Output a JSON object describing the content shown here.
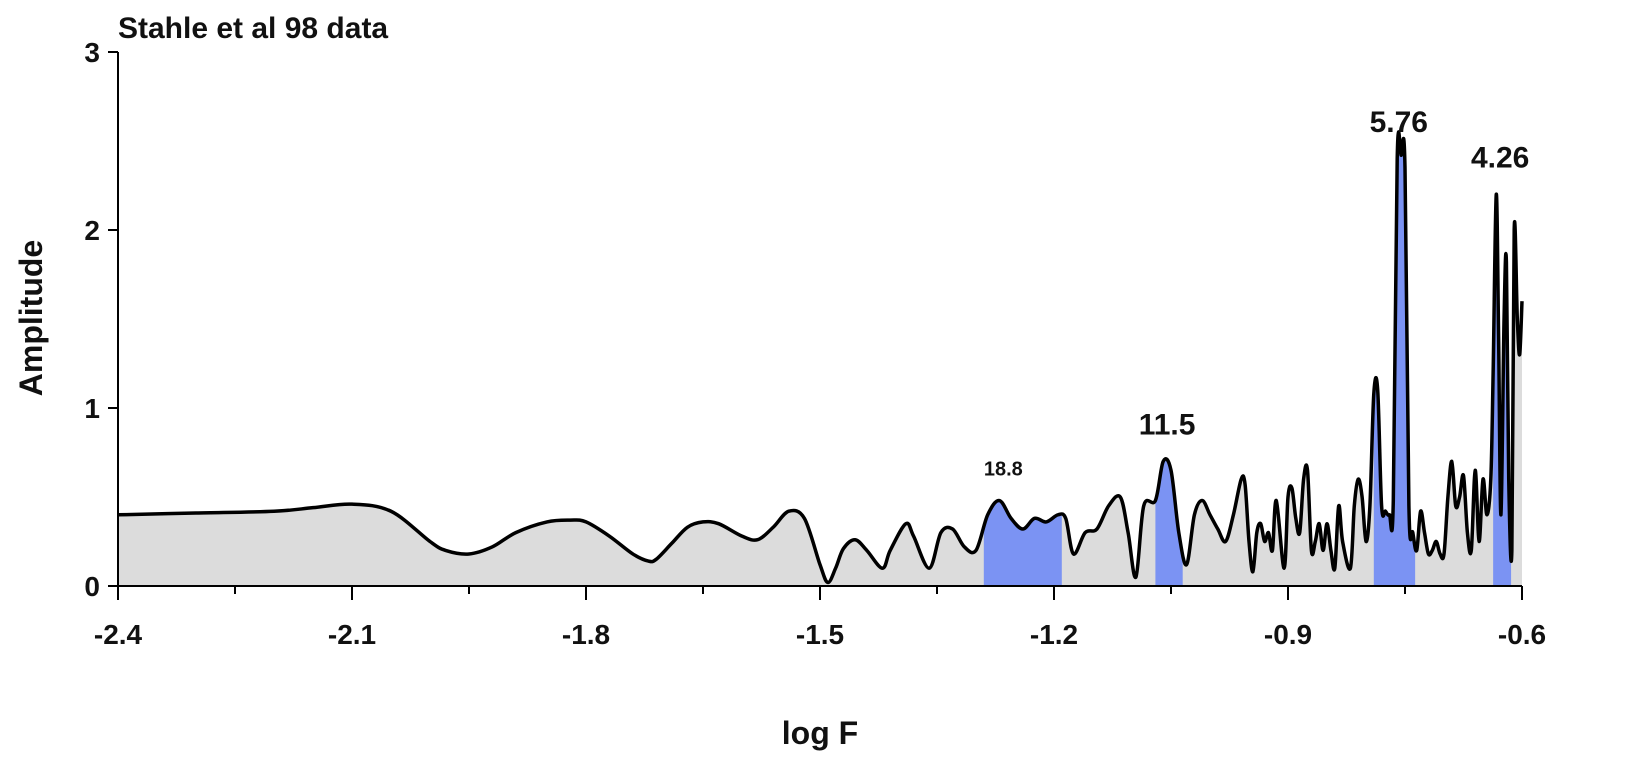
{
  "chart_data": {
    "type": "area",
    "title": "Stahle et al 98 data",
    "xlabel": "log F",
    "ylabel": "Amplitude",
    "xlim": [
      -2.4,
      -0.6
    ],
    "ylim": [
      0,
      3
    ],
    "x_ticks": [
      -2.4,
      -2.1,
      -1.8,
      -1.5,
      -1.2,
      -0.9,
      -0.6
    ],
    "x_tick_labels": [
      "-2.4",
      "-2.1",
      "-1.8",
      "-1.5",
      "-1.2",
      "-0.9",
      "-0.6"
    ],
    "y_ticks": [
      0,
      1,
      2,
      3
    ],
    "y_tick_labels": [
      "0",
      "1",
      "2",
      "3"
    ],
    "grid": false,
    "fill_color": "#dcdcdc",
    "band_color": "#7b93f3",
    "line_color": "#000000",
    "series": [
      {
        "x": [
          -2.4,
          -2.3,
          -2.2,
          -2.15,
          -2.1,
          -2.05,
          -2.0,
          -1.98,
          -1.95,
          -1.92,
          -1.89,
          -1.85,
          -1.82,
          -1.8,
          -1.77,
          -1.74,
          -1.72,
          -1.71,
          -1.69,
          -1.67,
          -1.65,
          -1.63,
          -1.6,
          -1.58,
          -1.56,
          -1.54,
          -1.52,
          -1.5,
          -1.49,
          -1.48,
          -1.47,
          -1.455,
          -1.44,
          -1.42,
          -1.41,
          -1.39,
          -1.38,
          -1.36,
          -1.345,
          -1.33,
          -1.315,
          -1.3,
          -1.285,
          -1.27,
          -1.255,
          -1.24,
          -1.225,
          -1.21,
          -1.195,
          -1.185,
          -1.175,
          -1.16,
          -1.145,
          -1.13,
          -1.115,
          -1.105,
          -1.095,
          -1.085,
          -1.07,
          -1.06,
          -1.05,
          -1.04,
          -1.03,
          -1.02,
          -1.01,
          -1.0,
          -0.99,
          -0.98,
          -0.97,
          -0.96,
          -0.955,
          -0.95,
          -0.945,
          -0.94,
          -0.935,
          -0.93,
          -0.925,
          -0.92,
          -0.915,
          -0.905,
          -0.9,
          -0.895,
          -0.89,
          -0.885,
          -0.88,
          -0.875,
          -0.87,
          -0.865,
          -0.86,
          -0.855,
          -0.85,
          -0.845,
          -0.84,
          -0.835,
          -0.83,
          -0.82,
          -0.815,
          -0.81,
          -0.805,
          -0.8,
          -0.795,
          -0.79,
          -0.785,
          -0.78,
          -0.775,
          -0.77,
          -0.765,
          -0.76,
          -0.755,
          -0.75,
          -0.745,
          -0.74,
          -0.735,
          -0.73,
          -0.725,
          -0.72,
          -0.715,
          -0.71,
          -0.705,
          -0.7,
          -0.695,
          -0.69,
          -0.685,
          -0.68,
          -0.675,
          -0.67,
          -0.665,
          -0.66,
          -0.655,
          -0.65,
          -0.645,
          -0.64,
          -0.637,
          -0.633,
          -0.63,
          -0.627,
          -0.623,
          -0.62,
          -0.617,
          -0.613,
          -0.61,
          -0.606,
          -0.603,
          -0.6
        ],
        "y": [
          0.4,
          0.41,
          0.42,
          0.44,
          0.46,
          0.42,
          0.25,
          0.2,
          0.18,
          0.22,
          0.3,
          0.36,
          0.37,
          0.36,
          0.28,
          0.18,
          0.14,
          0.15,
          0.24,
          0.33,
          0.36,
          0.35,
          0.28,
          0.26,
          0.33,
          0.42,
          0.38,
          0.12,
          0.02,
          0.1,
          0.21,
          0.26,
          0.2,
          0.1,
          0.2,
          0.35,
          0.28,
          0.1,
          0.3,
          0.32,
          0.22,
          0.2,
          0.4,
          0.48,
          0.38,
          0.32,
          0.38,
          0.36,
          0.4,
          0.38,
          0.18,
          0.3,
          0.32,
          0.45,
          0.5,
          0.3,
          0.05,
          0.45,
          0.48,
          0.7,
          0.65,
          0.3,
          0.12,
          0.4,
          0.48,
          0.4,
          0.32,
          0.25,
          0.4,
          0.6,
          0.57,
          0.25,
          0.08,
          0.3,
          0.35,
          0.25,
          0.3,
          0.2,
          0.48,
          0.1,
          0.5,
          0.55,
          0.38,
          0.3,
          0.6,
          0.65,
          0.2,
          0.25,
          0.35,
          0.2,
          0.35,
          0.2,
          0.1,
          0.45,
          0.25,
          0.1,
          0.45,
          0.6,
          0.5,
          0.25,
          0.45,
          1.08,
          1.1,
          0.45,
          0.42,
          0.4,
          0.48,
          2.4,
          2.42,
          2.35,
          0.45,
          0.3,
          0.2,
          0.42,
          0.3,
          0.18,
          0.2,
          0.25,
          0.18,
          0.18,
          0.5,
          0.7,
          0.45,
          0.5,
          0.62,
          0.3,
          0.2,
          0.65,
          0.25,
          0.6,
          0.4,
          0.6,
          1.2,
          2.2,
          1.4,
          0.4,
          1.5,
          1.82,
          0.6,
          0.2,
          2.0,
          1.5,
          1.3,
          1.6
        ]
      }
    ],
    "highlight_bands": [
      {
        "x0": -1.29,
        "x1": -1.19
      },
      {
        "x0": -1.07,
        "x1": -1.035
      },
      {
        "x0": -0.79,
        "x1": -0.737
      },
      {
        "x0": -0.637,
        "x1": -0.614
      }
    ],
    "annotations": [
      {
        "text": "18.8",
        "x": -1.265,
        "y": 0.62,
        "size": "small"
      },
      {
        "text": "11.5",
        "x": -1.055,
        "y": 0.85,
        "size": "large"
      },
      {
        "text": "5.76",
        "x": -0.758,
        "y": 2.55,
        "size": "large"
      },
      {
        "text": "4.26",
        "x": -0.628,
        "y": 2.35,
        "size": "large"
      }
    ]
  }
}
